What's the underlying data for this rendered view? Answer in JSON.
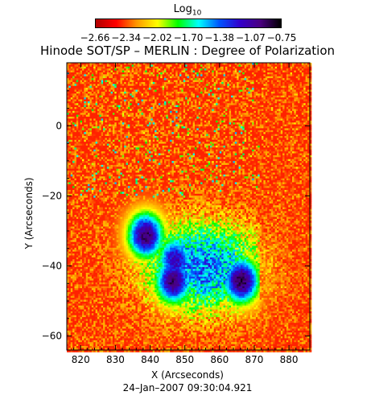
{
  "chart_data": {
    "type": "heatmap",
    "title": "Hinode SOT/SP – MERLIN : Degree of Polarization",
    "colorbar": {
      "label": "Log",
      "label_subscript": "10",
      "tick_labels": [
        "−2.66",
        "−2.34",
        "−2.02",
        "−1.70",
        "−1.38",
        "−1.07",
        "−0.75"
      ],
      "min": -2.66,
      "max": -0.75,
      "colormap": [
        "#b00000",
        "#ff0000",
        "#ff9900",
        "#ffff00",
        "#00ff00",
        "#00ffff",
        "#0055ff",
        "#3300cc",
        "#4a0080",
        "#000000"
      ]
    },
    "xlabel": "X (Arcseconds)",
    "ylabel": "Y (Arcseconds)",
    "xlim": [
      816,
      886
    ],
    "ylim": [
      -64,
      18
    ],
    "x_ticks": [
      820,
      830,
      840,
      850,
      860,
      870,
      880
    ],
    "y_ticks": [
      0,
      -20,
      -40,
      -60
    ],
    "x_tick_labels": [
      "820",
      "830",
      "840",
      "850",
      "860",
      "870",
      "880"
    ],
    "y_tick_labels": [
      "0",
      "−20",
      "−40",
      "−60"
    ],
    "data_extent": {
      "x": [
        816,
        886
      ],
      "y": [
        -64,
        18
      ]
    },
    "strong_polarization_regions": [
      {
        "x": 838.5,
        "y": -31,
        "level": -0.9
      },
      {
        "x": 846.5,
        "y": -44,
        "level": -0.9
      },
      {
        "x": 866,
        "y": -44,
        "level": -0.85
      },
      {
        "x": 847,
        "y": -38,
        "level": -1.1
      }
    ],
    "timestamp": "24–Jan–2007 09:30:04.921"
  }
}
